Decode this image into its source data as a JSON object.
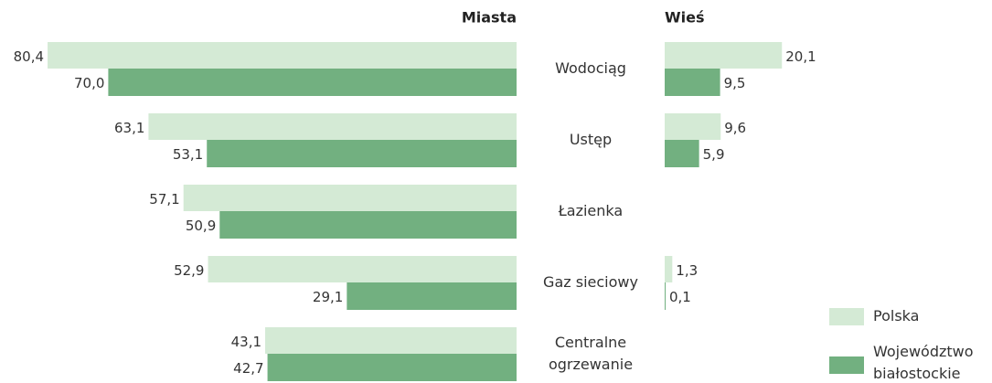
{
  "chart_data": {
    "type": "bar",
    "categories": [
      "Wodociąg",
      "Ustęp",
      "Łazienka",
      "Gaz sieciowy",
      "Centralne ogrzewanie"
    ],
    "panels": [
      {
        "title": "Miasta"
      },
      {
        "title": "Wieś"
      }
    ],
    "series": [
      {
        "name": "Polska",
        "color": "#d4ead5",
        "values": [
          [
            80.4,
            63.1,
            57.1,
            52.9,
            43.1
          ],
          [
            20.1,
            9.6,
            null,
            1.3,
            null
          ]
        ],
        "value_labels": [
          [
            "80,4",
            "63,1",
            "57,1",
            "52,9",
            "43,1"
          ],
          [
            "20,1",
            "9,6",
            null,
            "1,3",
            null
          ]
        ]
      },
      {
        "name": "Województwo białostockie",
        "color": "#72b080",
        "values": [
          [
            70.0,
            53.1,
            50.9,
            29.1,
            42.7
          ],
          [
            9.5,
            5.9,
            null,
            0.1,
            null
          ]
        ],
        "value_labels": [
          [
            "70,0",
            "53,1",
            "50,9",
            "29,1",
            "42,7"
          ],
          [
            "9,5",
            "5,9",
            null,
            "0,1",
            null
          ]
        ]
      }
    ]
  }
}
